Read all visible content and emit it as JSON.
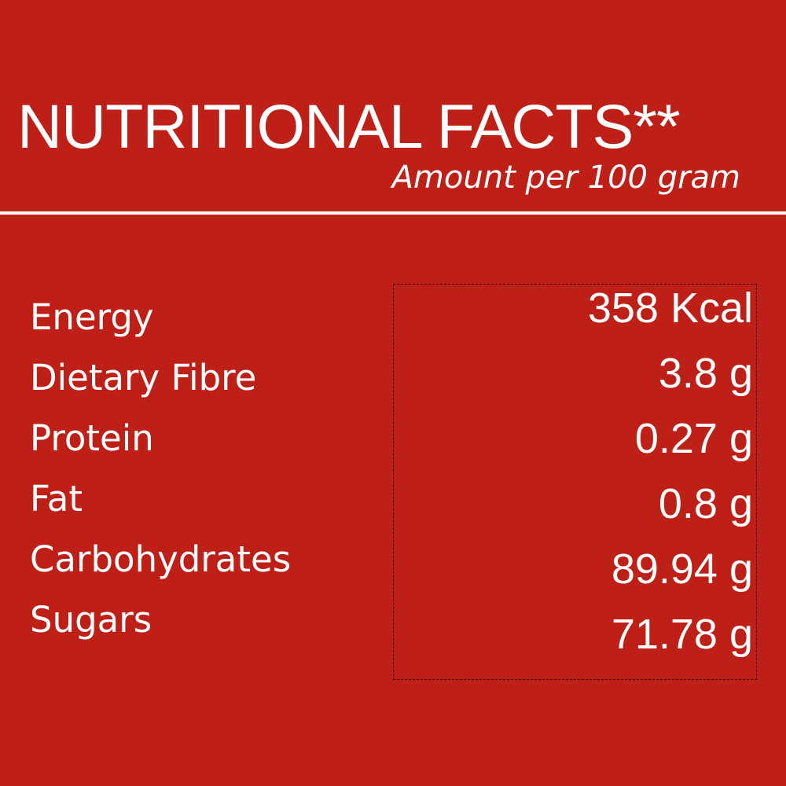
{
  "colors": {
    "background": "#BE2018",
    "text": "#FFFFFF"
  },
  "header": {
    "title": "NUTRITIONAL FACTS**",
    "subtitle": "Amount per 100 gram"
  },
  "rows": [
    {
      "label": "Energy",
      "value": "358 Kcal"
    },
    {
      "label": "Dietary Fibre",
      "value": "3.8 g"
    },
    {
      "label": "Protein",
      "value": "0.27 g"
    },
    {
      "label": "Fat",
      "value": "0.8 g"
    },
    {
      "label": "Carbohydrates",
      "value": "89.94 g"
    },
    {
      "label": "Sugars",
      "value": "71.78 g"
    }
  ]
}
